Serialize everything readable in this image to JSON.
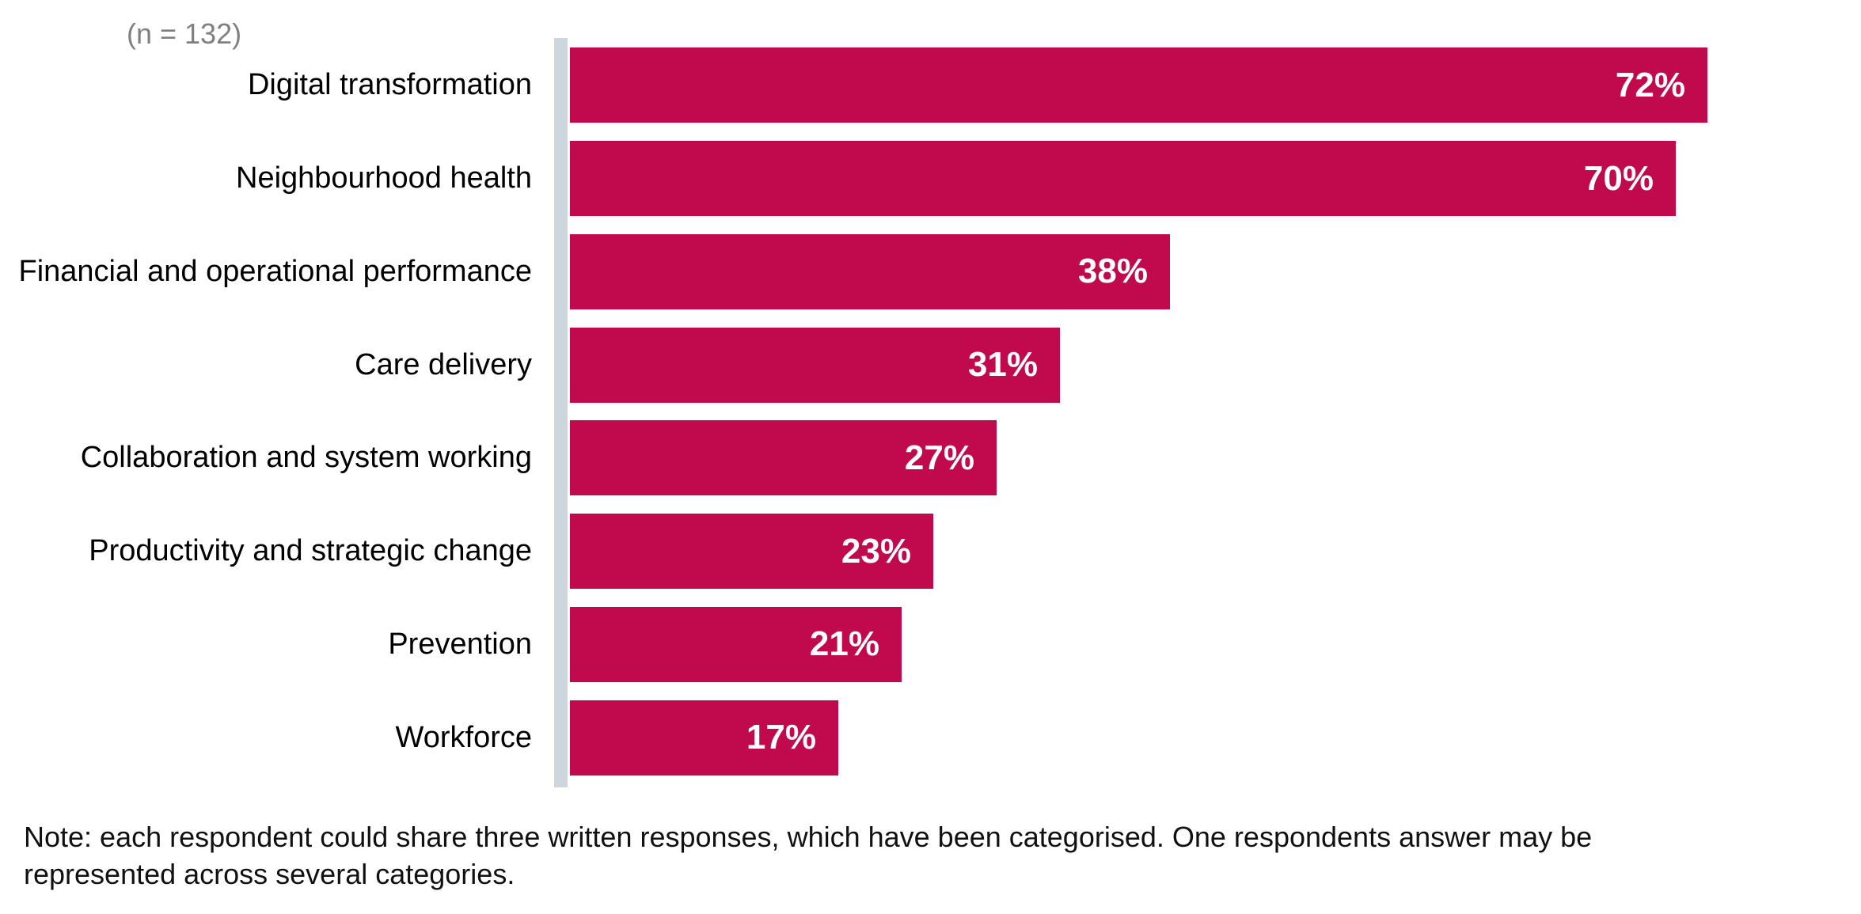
{
  "chart_data": {
    "type": "bar",
    "orientation": "horizontal",
    "sample_size_label": "(n = 132)",
    "categories": [
      "Digital transformation",
      "Neighbourhood health",
      "Financial and operational performance",
      "Care delivery",
      "Collaboration and system working",
      "Productivity and strategic change",
      "Prevention",
      "Workforce"
    ],
    "values": [
      72,
      70,
      38,
      31,
      27,
      23,
      21,
      17
    ],
    "value_labels": [
      "72%",
      "70%",
      "38%",
      "31%",
      "27%",
      "23%",
      "21%",
      "17%"
    ],
    "unit": "%",
    "grid": false,
    "legend": false,
    "axis_ticks_visible": false,
    "note": "Note: each respondent could share three written responses, which have been categorised. One respondents answer may be represented across several categories."
  },
  "colors": {
    "bar": "#C00A4D",
    "axis_line": "#CDD6DC",
    "sample_size_text": "#808080",
    "category_text": "#000000",
    "value_text": "#FFFFFF",
    "note_text": "#111111",
    "background": "#FFFFFF"
  }
}
